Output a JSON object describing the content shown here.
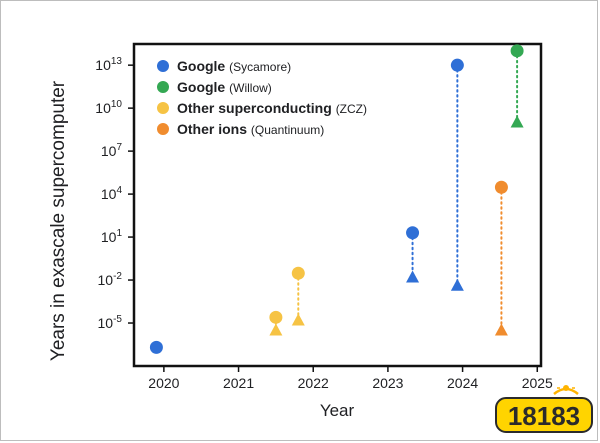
{
  "chart_data": {
    "type": "scatter",
    "title": "",
    "xlabel": "Year",
    "ylabel": "Years in exascale supercomputer",
    "x_ticks": [
      "2020",
      "2021",
      "2022",
      "2023",
      "2024",
      "2025"
    ],
    "xlim": [
      2019.6,
      2025.05
    ],
    "y_scale": "log10",
    "y_ticks": [
      {
        "base": "10",
        "exp": "-5",
        "value": 1e-05
      },
      {
        "base": "10",
        "exp": "-2",
        "value": 0.01
      },
      {
        "base": "10",
        "exp": "1",
        "value": 10
      },
      {
        "base": "10",
        "exp": "4",
        "value": 10000
      },
      {
        "base": "10",
        "exp": "7",
        "value": 10000000
      },
      {
        "base": "10",
        "exp": "10",
        "value": 10000000000
      },
      {
        "base": "10",
        "exp": "13",
        "value": 10000000000000
      }
    ],
    "ylim": [
      1e-08,
      300000000000000.0
    ],
    "legend_position": "top-left",
    "series": [
      {
        "name": "Google",
        "detail": "(Sycamore)",
        "color": "#2f6fd6"
      },
      {
        "name": "Google",
        "detail": "(Willow)",
        "color": "#34a853"
      },
      {
        "name": "Other superconducting",
        "detail": "(ZCZ)",
        "color": "#f6c344"
      },
      {
        "name": "Other ions",
        "detail": "(Quantinuum)",
        "color": "#f08c2e"
      }
    ],
    "points": [
      {
        "series": 0,
        "x": 2019.9,
        "circle": 2e-07,
        "triangle": null
      },
      {
        "series": 2,
        "x": 2021.5,
        "circle": 2.5e-05,
        "triangle": 3e-06
      },
      {
        "series": 2,
        "x": 2021.8,
        "circle": 0.03,
        "triangle": 1.5e-05
      },
      {
        "series": 0,
        "x": 2023.33,
        "circle": 20,
        "triangle": 0.015
      },
      {
        "series": 0,
        "x": 2023.93,
        "circle": 10000000000000.0,
        "triangle": 0.004
      },
      {
        "series": 3,
        "x": 2024.52,
        "circle": 30000,
        "triangle": 3e-06
      },
      {
        "series": 1,
        "x": 2024.73,
        "circle": 100000000000000.0,
        "triangle": 1000000000.0
      }
    ]
  },
  "watermark": {
    "text": "18183"
  }
}
